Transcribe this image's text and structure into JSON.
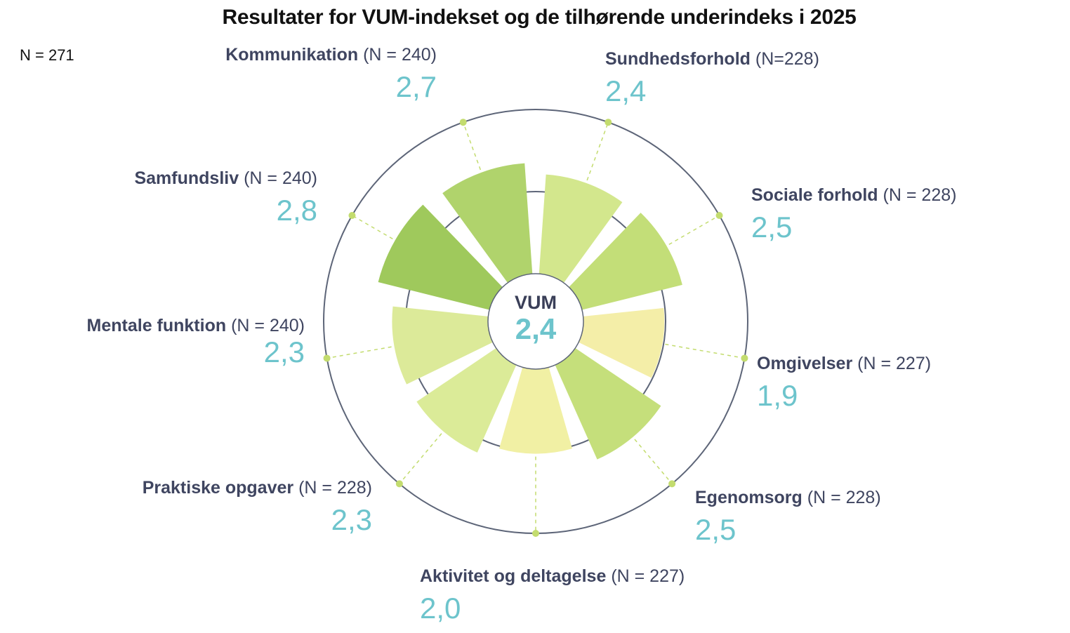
{
  "chart_data": {
    "type": "polar-bar",
    "title": "Resultater for VUM-indekset og de tilhørende underindeks i 2025",
    "total_n": "N = 271",
    "center": {
      "label": "VUM",
      "value": 2.4,
      "value_text": "2,4"
    },
    "categories": [
      {
        "name": "Samfundsliv",
        "n": "(N = 240)",
        "value": 2.8,
        "value_text": "2,8",
        "color": "#9fc95c"
      },
      {
        "name": "Kommunikation",
        "n": "(N = 240)",
        "value": 2.7,
        "value_text": "2,7",
        "color": "#b0d36c"
      },
      {
        "name": "Sundhedsforhold",
        "n": "(N=228)",
        "value": 2.4,
        "value_text": "2,4",
        "color": "#d3e78d"
      },
      {
        "name": "Sociale forhold",
        "n": "(N = 228)",
        "value": 2.5,
        "value_text": "2,5",
        "color": "#c3de78"
      },
      {
        "name": "Omgivelser",
        "n": "(N = 227)",
        "value": 1.9,
        "value_text": "1,9",
        "color": "#f4eea8"
      },
      {
        "name": "Egenomsorg",
        "n": "(N = 228)",
        "value": 2.5,
        "value_text": "2,5",
        "color": "#c5df7b"
      },
      {
        "name": "Aktivitet og deltagelse",
        "n": "(N = 227)",
        "value": 2.0,
        "value_text": "2,0",
        "color": "#f1f0a4"
      },
      {
        "name": "Praktiske opgaver",
        "n": "(N = 228)",
        "value": 2.3,
        "value_text": "2,3",
        "color": "#dbeb98"
      },
      {
        "name": "Mentale funktion",
        "n": "(N = 240)",
        "value": 2.3,
        "value_text": "2,3",
        "color": "#dcea99"
      }
    ],
    "grid": true,
    "colors": {
      "ring": "#5d6578",
      "dot": "#c3dc6e",
      "value_text": "#6dc4cc",
      "label_text": "#3f4560"
    }
  }
}
